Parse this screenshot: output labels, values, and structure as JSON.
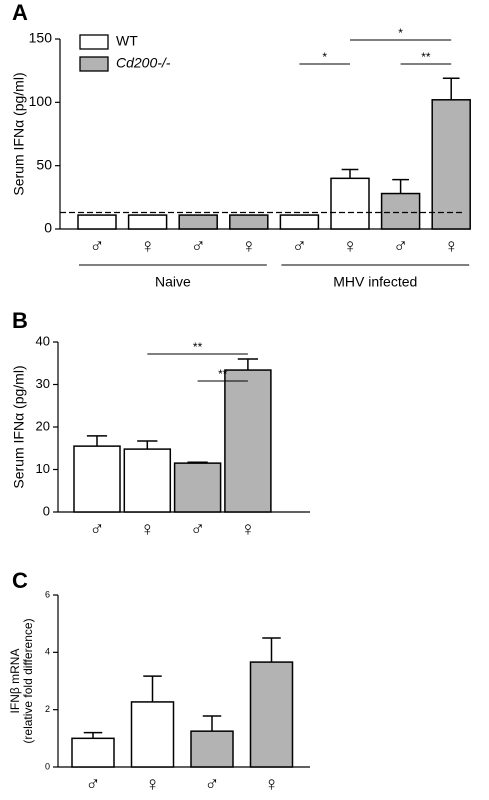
{
  "chart_data": [
    {
      "type": "bar",
      "panel": "A",
      "y_label": [
        "Serum IFNα (pg/ml)"
      ],
      "categories": [
        "♂",
        "♀",
        "♂",
        "♀",
        "♂",
        "♀",
        "♂",
        "♀"
      ],
      "series": [
        {
          "name": "WT",
          "color": "#ffffff",
          "values": [
            11,
            11,
            null,
            null,
            11,
            40,
            null,
            null
          ],
          "errors": [
            null,
            null,
            null,
            null,
            null,
            7,
            null,
            null
          ]
        },
        {
          "name": "Cd200-/-",
          "color": "#b3b3b3",
          "values": [
            null,
            null,
            11,
            11,
            null,
            null,
            28,
            102
          ],
          "errors": [
            null,
            null,
            null,
            null,
            null,
            null,
            11,
            17
          ]
        }
      ],
      "reference_line": 13,
      "groups": [
        {
          "label": "Naive",
          "from": 0,
          "to": 3
        },
        {
          "label": "MHV infected",
          "from": 4,
          "to": 7
        }
      ],
      "significance": [
        {
          "label": "*",
          "from": 4,
          "to": 5
        },
        {
          "label": "*",
          "from": 5,
          "to": 7
        },
        {
          "label": "**",
          "from": 6,
          "to": 7
        }
      ],
      "ylim": [
        0,
        150
      ],
      "yticks": [
        0,
        50,
        100,
        150
      ]
    },
    {
      "type": "bar",
      "panel": "B",
      "y_label": [
        "Serum IFNα (pg/ml)"
      ],
      "categories": [
        "♂",
        "♀",
        "♂",
        "♀"
      ],
      "series": [
        {
          "color": "#ffffff",
          "values": [
            15.5,
            14.8,
            null,
            null
          ],
          "errors": [
            2.4,
            1.9,
            null,
            null
          ]
        },
        {
          "color": "#b3b3b3",
          "values": [
            null,
            null,
            11.5,
            33.4
          ],
          "errors": [
            null,
            null,
            0.2,
            2.6
          ]
        }
      ],
      "significance": [
        {
          "label": "**",
          "from": 1,
          "to": 3
        },
        {
          "label": "**",
          "from": 2,
          "to": 3
        }
      ],
      "ylim": [
        0,
        40
      ],
      "yticks": [
        0,
        10,
        20,
        30,
        40
      ]
    },
    {
      "type": "bar",
      "panel": "C",
      "y_label": [
        "IFNβ mRNA",
        "(relative fold difference)"
      ],
      "categories": [
        "♂",
        "♀",
        "♂",
        "♀"
      ],
      "series": [
        {
          "color": "#ffffff",
          "values": [
            1.0,
            2.27,
            null,
            null
          ],
          "errors": [
            0.2,
            0.9,
            null,
            null
          ]
        },
        {
          "color": "#b3b3b3",
          "values": [
            null,
            null,
            1.25,
            3.66
          ],
          "errors": [
            null,
            null,
            0.53,
            0.84
          ]
        }
      ],
      "ylim": [
        0,
        6
      ],
      "yticks": [
        0,
        2,
        4,
        6
      ]
    }
  ]
}
